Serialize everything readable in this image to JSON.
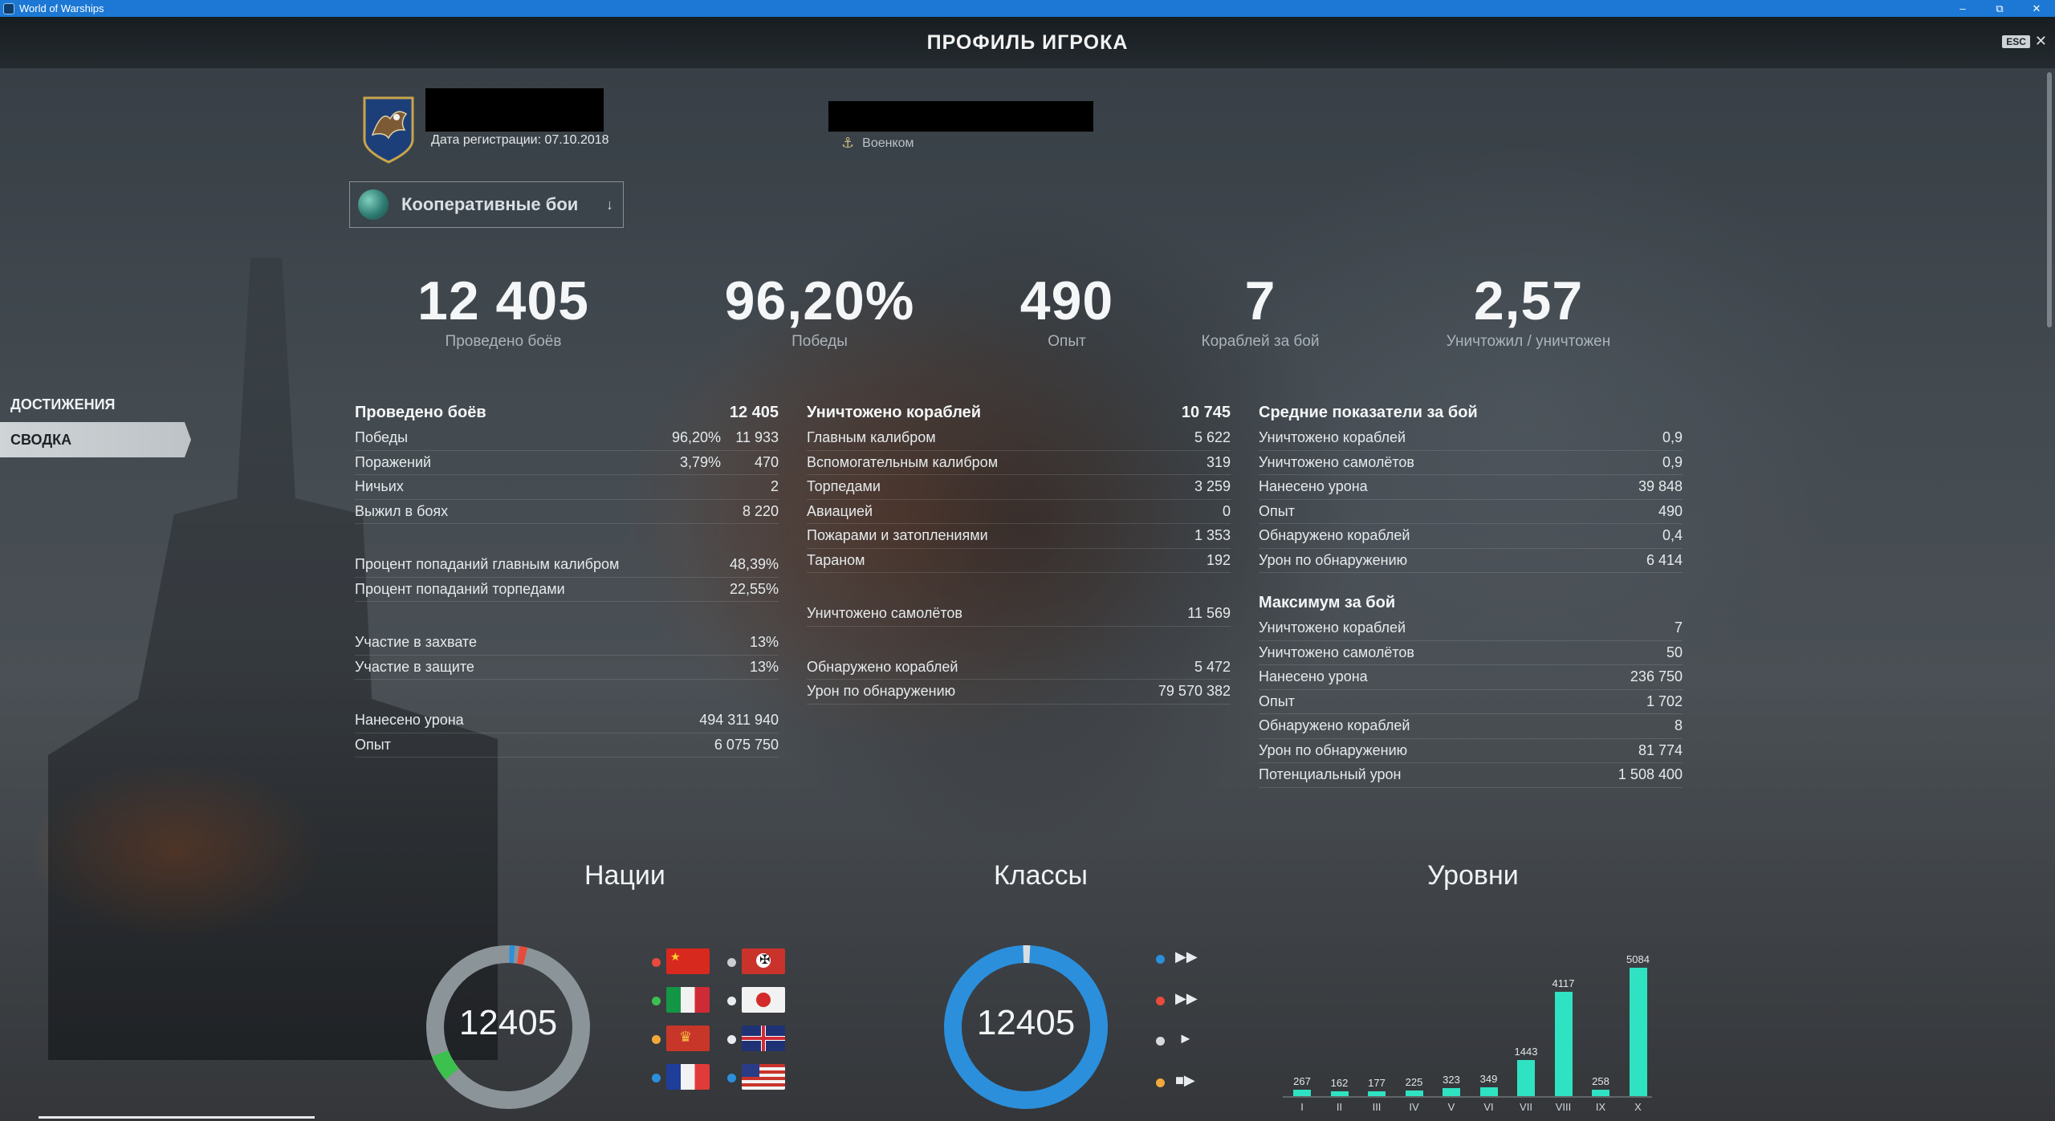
{
  "window": {
    "title": "World of Warships"
  },
  "header": {
    "title": "ПРОФИЛЬ ИГРОКА",
    "esc": "ESC"
  },
  "player": {
    "registration": "Дата регистрации: 07.10.2018",
    "rank": "Военком"
  },
  "mode": {
    "label": "Кооперативные бои"
  },
  "big_stats": [
    {
      "value": "12 405",
      "label": "Проведено боёв"
    },
    {
      "value": "96,20%",
      "label": "Победы"
    },
    {
      "value": "490",
      "label": "Опыт"
    },
    {
      "value": "7",
      "label": "Кораблей за бой"
    },
    {
      "value": "2,57",
      "label": "Уничтожил / уничтожен"
    }
  ],
  "nav": {
    "achievements": "ДОСТИЖЕНИЯ",
    "summary": "СВОДКА"
  },
  "col1": {
    "header": {
      "label": "Проведено боёв",
      "value": "12 405"
    },
    "rows": [
      {
        "label": "Победы",
        "pct": "96,20%",
        "value": "11 933"
      },
      {
        "label": "Поражений",
        "pct": "3,79%",
        "value": "470"
      },
      {
        "label": "Ничьих",
        "value": "2"
      },
      {
        "label": "Выжил в боях",
        "value": "8 220"
      },
      {
        "label": "Процент попаданий главным калибром",
        "value": "48,39%"
      },
      {
        "label": "Процент попаданий торпедами",
        "value": "22,55%"
      },
      {
        "label": "Участие в захвате",
        "value": "13%"
      },
      {
        "label": "Участие в защите",
        "value": "13%"
      },
      {
        "label": "Нанесено урона",
        "value": "494 311 940"
      },
      {
        "label": "Опыт",
        "value": "6 075 750"
      }
    ]
  },
  "col2": {
    "header": {
      "label": "Уничтожено кораблей",
      "value": "10 745"
    },
    "rows": [
      {
        "label": "Главным калибром",
        "value": "5 622"
      },
      {
        "label": "Вспомогательным калибром",
        "value": "319"
      },
      {
        "label": "Торпедами",
        "value": "3 259"
      },
      {
        "label": "Авиацией",
        "value": "0"
      },
      {
        "label": "Пожарами и затоплениями",
        "value": "1 353"
      },
      {
        "label": "Тараном",
        "value": "192"
      },
      {
        "label": "Уничтожено самолётов",
        "value": "11 569"
      },
      {
        "label": "Обнаружено кораблей",
        "value": "5 472"
      },
      {
        "label": "Урон по обнаружению",
        "value": "79 570 382"
      }
    ]
  },
  "col3": {
    "header": {
      "label": "Средние показатели за бой"
    },
    "rows": [
      {
        "label": "Уничтожено кораблей",
        "value": "0,9"
      },
      {
        "label": "Уничтожено самолётов",
        "value": "0,9"
      },
      {
        "label": "Нанесено урона",
        "value": "39 848"
      },
      {
        "label": "Опыт",
        "value": "490"
      },
      {
        "label": "Обнаружено кораблей",
        "value": "0,4"
      },
      {
        "label": "Урон по обнаружению",
        "value": "6 414"
      }
    ],
    "header2": {
      "label": "Максимум за бой"
    },
    "rows2": [
      {
        "label": "Уничтожено кораблей",
        "value": "7"
      },
      {
        "label": "Уничтожено самолётов",
        "value": "50"
      },
      {
        "label": "Нанесено урона",
        "value": "236 750"
      },
      {
        "label": "Опыт",
        "value": "1 702"
      },
      {
        "label": "Обнаружено кораблей",
        "value": "8"
      },
      {
        "label": "Урон по обнаружению",
        "value": "81 774"
      },
      {
        "label": "Потенциальный урон",
        "value": "1 508 400"
      }
    ]
  },
  "sections": {
    "nations": "Нации",
    "classes": "Классы",
    "tiers": "Уровни"
  },
  "nations_total": "12405",
  "classes_total": "12405",
  "colors": {
    "accent": "#2fe3c2",
    "donut_base": "#8b9499",
    "classes_ring": "#2b8fdc"
  },
  "chart_data": {
    "type": "bar",
    "categories": [
      "I",
      "II",
      "III",
      "IV",
      "V",
      "VI",
      "VII",
      "VIII",
      "IX",
      "X"
    ],
    "values": [
      267,
      162,
      177,
      225,
      323,
      349,
      1443,
      4117,
      258,
      5084
    ],
    "labels": [
      "267",
      "162",
      "177",
      "225",
      "323",
      "349",
      "1443",
      "4117",
      "258",
      "5084"
    ],
    "title": "Уровни"
  }
}
